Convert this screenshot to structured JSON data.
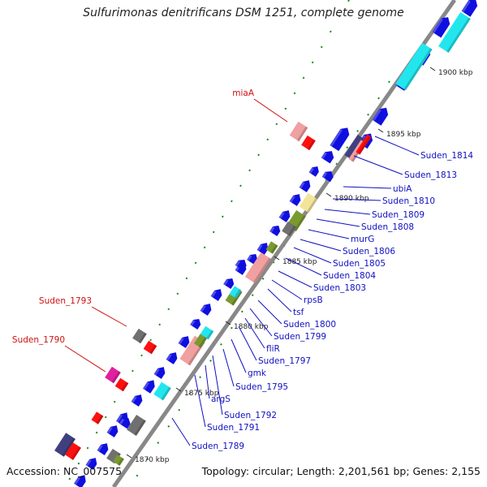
{
  "title": "Sulfurimonas denitrificans DSM 1251, complete genome",
  "footer": {
    "accession": "Accession: NC_007575",
    "summary": "Topology: circular; Length: 2,201,561 bp; Genes: 2,155"
  },
  "ticks": [
    "1900 kbp",
    "1895 kbp",
    "1890 kbp",
    "1885 kbp",
    "1880 kbp",
    "1875 kbp",
    "1870 kbp"
  ],
  "labels_outer": [
    "miaA",
    "Suden_1793",
    "Suden_1790"
  ],
  "labels_inner": [
    "Suden_1814",
    "Suden_1813",
    "ubiA",
    "Suden_1810",
    "Suden_1809",
    "Suden_1808",
    "murG",
    "Suden_1806",
    "Suden_1805",
    "Suden_1804",
    "Suden_1803",
    "rpsB",
    "tsf",
    "Suden_1800",
    "Suden_1799",
    "fliR",
    "Suden_1797",
    "gmk",
    "Suden_1795",
    "Suden_1792",
    "argS",
    "Suden_1791",
    "Suden_1789"
  ],
  "colors": {
    "cds": "#0f0fe0",
    "cds_dark": "#0808a0",
    "cyan": "#22e6ee",
    "pink": "#f0a0a0",
    "red": "#ff1010",
    "gray": "#707070",
    "olive": "#7a9a30",
    "yellow": "#f2e59a",
    "magenta": "#e020a0",
    "navy": "#404080",
    "label_inner": "#1010c0",
    "label_outer": "#d01010"
  }
}
